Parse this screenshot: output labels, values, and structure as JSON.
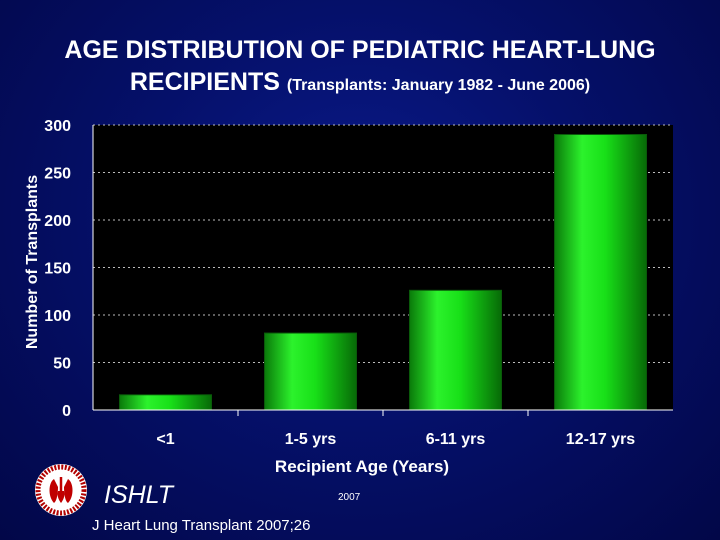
{
  "title": {
    "line1": "AGE DISTRIBUTION OF PEDIATRIC HEART-LUNG",
    "line2": "RECIPIENTS",
    "subtitle": "(Transplants: January 1982 - June 2006)"
  },
  "chart_data": {
    "type": "bar",
    "categories": [
      "<1",
      "1-5 yrs",
      "6-11 yrs",
      "12-17 yrs"
    ],
    "values": [
      16,
      81,
      126,
      290
    ],
    "xlabel": "Recipient Age (Years)",
    "ylabel": "Number of Transplants",
    "ylim": [
      0,
      300
    ],
    "yticks": [
      0,
      50,
      100,
      150,
      200,
      250,
      300
    ],
    "grid": true,
    "bar_color": "#16e016"
  },
  "footer": {
    "org": "ISHLT",
    "year": "2007",
    "citation": "J Heart Lung Transplant 2007;26"
  }
}
